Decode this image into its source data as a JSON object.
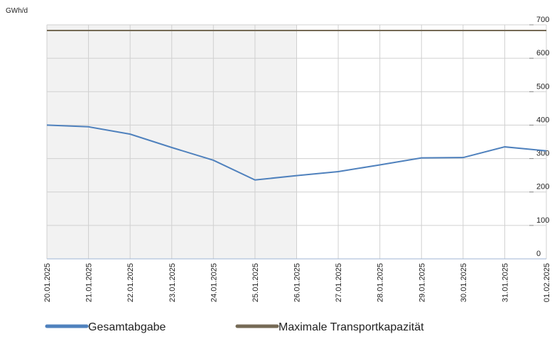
{
  "chart_data": {
    "type": "line",
    "y_axis_label": "GWh/d",
    "x": [
      "20.01.2025",
      "21.01.2025",
      "22.01.2025",
      "23.01.2025",
      "24.01.2025",
      "25.01.2025",
      "26.01.2025",
      "27.01.2025",
      "28.01.2025",
      "29.01.2025",
      "30.01.2025",
      "31.01.2025",
      "01.02.2025"
    ],
    "series": [
      {
        "name": "Gesamtabgabe",
        "color": "#4f81bd",
        "values": [
          400,
          395,
          373,
          333,
          295,
          236,
          249,
          261,
          281,
          302,
          303,
          335,
          323
        ]
      },
      {
        "name": "Maximale Transportkapazität",
        "color": "#756a55",
        "values": [
          683,
          683,
          683,
          683,
          683,
          683,
          683,
          683,
          683,
          683,
          683,
          683,
          683
        ]
      }
    ],
    "ylim": [
      0,
      700
    ],
    "yticks": [
      0,
      100,
      200,
      300,
      400,
      500,
      600,
      700
    ],
    "y_axis_side": "right",
    "grid": true,
    "shaded_x": [
      "20.01.2025",
      "26.01.2025"
    ],
    "shade_color": "#f2f2f2",
    "legend": "bottom"
  }
}
